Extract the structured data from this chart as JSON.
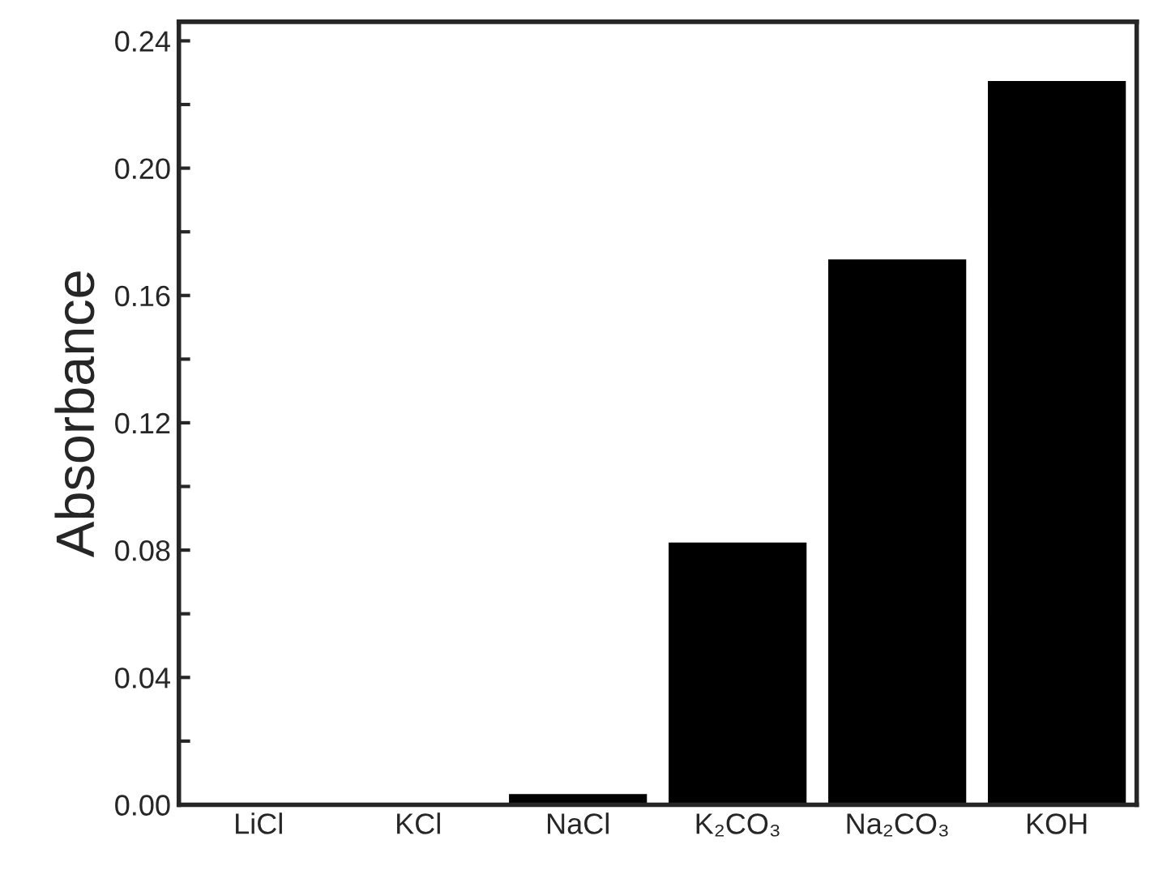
{
  "chart_data": {
    "type": "bar",
    "ylabel": "Absorbance",
    "categories": [
      "LiCl",
      "KCl",
      "NaCl",
      "K₂CO₃",
      "Na₂CO₃",
      "KOH"
    ],
    "values": [
      0,
      0,
      0.003,
      0.082,
      0.171,
      0.227
    ],
    "color": "#000000",
    "ylim": [
      0,
      0.246
    ],
    "yticks": [
      {
        "value": 0,
        "label": "0.00"
      },
      {
        "value": 0.02,
        "label": null
      },
      {
        "value": 0.04,
        "label": "0.04"
      },
      {
        "value": 0.06,
        "label": null
      },
      {
        "value": 0.08,
        "label": "0.08"
      },
      {
        "value": 0.1,
        "label": null
      },
      {
        "value": 0.12,
        "label": "0.12"
      },
      {
        "value": 0.14,
        "label": null
      },
      {
        "value": 0.16,
        "label": "0.16"
      },
      {
        "value": 0.18,
        "label": null
      },
      {
        "value": 0.2,
        "label": "0.20"
      },
      {
        "value": 0.22,
        "label": null
      },
      {
        "value": 0.24,
        "label": "0.24"
      }
    ],
    "grid": false
  }
}
